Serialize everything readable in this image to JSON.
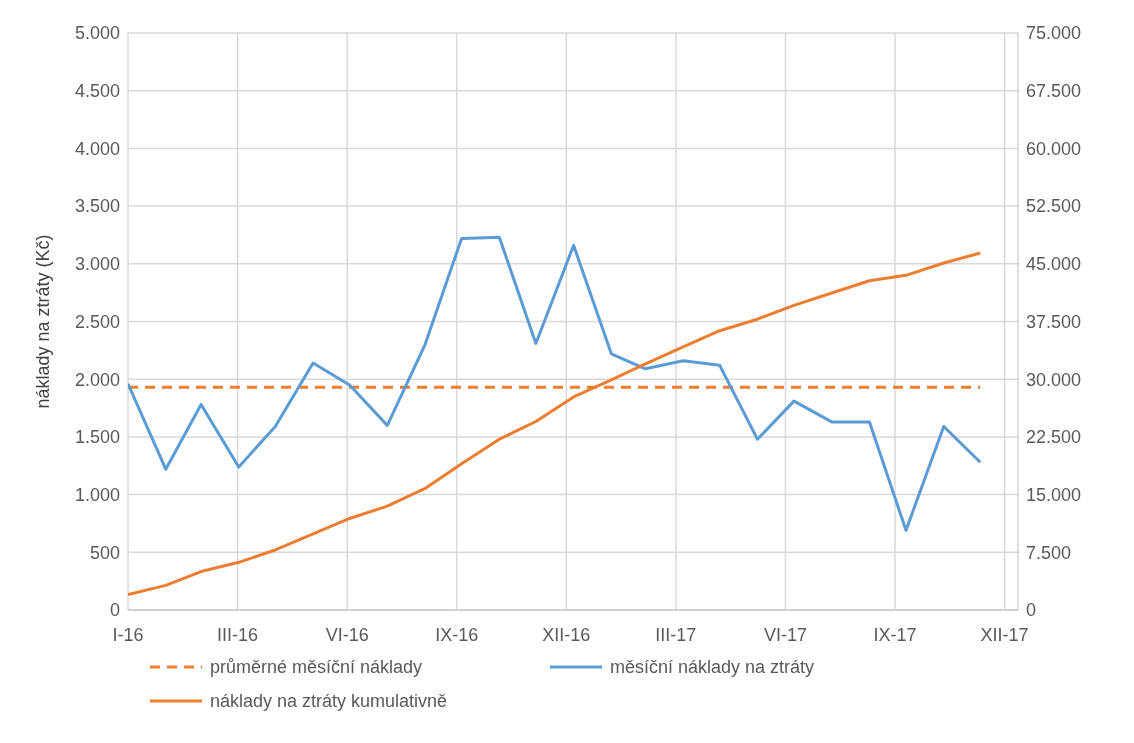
{
  "chart_data": {
    "type": "line",
    "ylabel": "náklady na ztráty (Kč)",
    "x": [
      "2016-01",
      "2016-02",
      "2016-03",
      "2016-04",
      "2016-05",
      "2016-06",
      "2016-07",
      "2016-08",
      "2016-09",
      "2016-10",
      "2016-11",
      "2016-12",
      "2017-01",
      "2017-02",
      "2017-03",
      "2017-04",
      "2017-05",
      "2017-06",
      "2017-07",
      "2017-08",
      "2017-09",
      "2017-10",
      "2017-11",
      "2017-12"
    ],
    "xlim": [
      "2016-01-01",
      "2018-01-01"
    ],
    "xticks": [
      {
        "value": "2016-01-01",
        "label": "I-16"
      },
      {
        "value": "2016-03-31",
        "label": "III-16"
      },
      {
        "value": "2016-06-29",
        "label": "VI-16"
      },
      {
        "value": "2016-09-27",
        "label": "IX-16"
      },
      {
        "value": "2016-12-26",
        "label": "XII-16"
      },
      {
        "value": "2017-03-26",
        "label": "III-17"
      },
      {
        "value": "2017-06-24",
        "label": "VI-17"
      },
      {
        "value": "2017-09-22",
        "label": "IX-17"
      },
      {
        "value": "2017-12-21",
        "label": "XII-17"
      }
    ],
    "ylim": [
      0,
      5000
    ],
    "yticks": [
      0,
      500,
      {
        "value": 1000,
        "label": "1.000"
      },
      {
        "value": 1500,
        "label": "1.500"
      },
      {
        "value": 2000,
        "label": "2.000"
      },
      {
        "value": 2500,
        "label": "2.500"
      },
      {
        "value": 3000,
        "label": "3.000"
      },
      {
        "value": 3500,
        "label": "3.500"
      },
      {
        "value": 4000,
        "label": "4.000"
      },
      {
        "value": 4500,
        "label": "4.500"
      },
      {
        "value": 5000,
        "label": "5.000"
      }
    ],
    "y2lim": [
      0,
      75000
    ],
    "y2ticks": [
      0,
      {
        "value": 7500,
        "label": "7.500"
      },
      {
        "value": 15000,
        "label": "15.000"
      },
      {
        "value": 22500,
        "label": "22.500"
      },
      {
        "value": 30000,
        "label": "30.000"
      },
      {
        "value": 37500,
        "label": "37.500"
      },
      {
        "value": 45000,
        "label": "45.000"
      },
      {
        "value": 52500,
        "label": "52.500"
      },
      {
        "value": 60000,
        "label": "60.000"
      },
      {
        "value": 67500,
        "label": "67.500"
      },
      {
        "value": 75000,
        "label": "75.000"
      }
    ],
    "series": [
      {
        "name": "průměrné měsíční náklady",
        "color": "#ed7d31",
        "line_style": "dashed",
        "values": [
          1930,
          1930,
          1930,
          1930,
          1930,
          1930,
          1930,
          1930,
          1930,
          1930,
          1930,
          1930,
          1930,
          1930,
          1930,
          1930,
          1930,
          1930,
          1930,
          1930,
          1930,
          1930,
          1930,
          1930
        ]
      },
      {
        "name": "měsíční náklady na ztráty",
        "color": "#5b9bd5",
        "values": [
          1960,
          1220,
          1780,
          1240,
          1590,
          2140,
          1950,
          1600,
          2300,
          3220,
          3230,
          2310,
          3160,
          2220,
          2090,
          2160,
          2120,
          1480,
          1810,
          1630,
          1630,
          690,
          1590,
          1280
        ]
      },
      {
        "name": "náklady na ztráty kumulativně",
        "color": "#ed7d31",
        "axis": "y2",
        "values": [
          2000,
          3200,
          5000,
          6200,
          7800,
          9900,
          11900,
          13500,
          15800,
          19000,
          22200,
          24500,
          27700,
          29900,
          32000,
          34200,
          36300,
          37800,
          39600,
          41200,
          42800,
          43500,
          45100,
          46400
        ]
      }
    ],
    "grid": true,
    "legend": "bottom",
    "marker": "none",
    "line_style": "solid"
  }
}
